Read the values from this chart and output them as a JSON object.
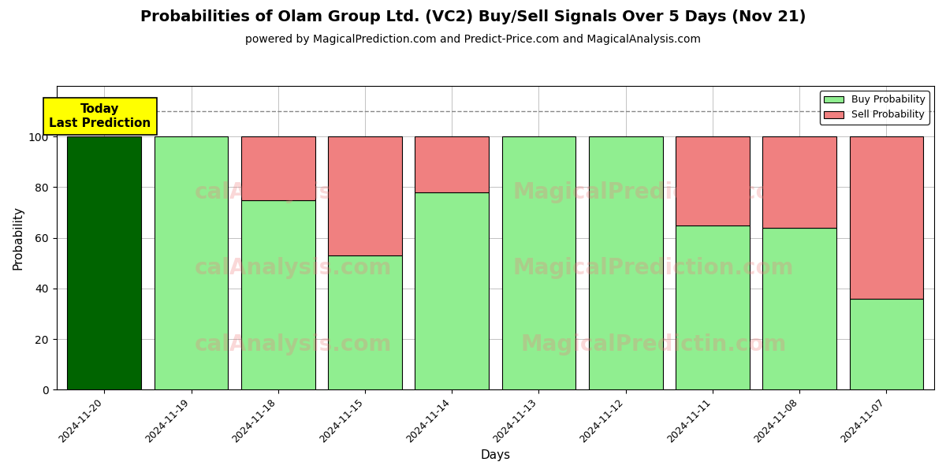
{
  "title": "Probabilities of Olam Group Ltd. (VC2) Buy/Sell Signals Over 5 Days (Nov 21)",
  "subtitle": "powered by MagicalPrediction.com and Predict-Price.com and MagicalAnalysis.com",
  "xlabel": "Days",
  "ylabel": "Probability",
  "dates": [
    "2024-11-20",
    "2024-11-19",
    "2024-11-18",
    "2024-11-15",
    "2024-11-14",
    "2024-11-13",
    "2024-11-12",
    "2024-11-11",
    "2024-11-08",
    "2024-11-07"
  ],
  "buy_values": [
    100,
    100,
    75,
    53,
    78,
    100,
    100,
    65,
    64,
    36
  ],
  "sell_values": [
    0,
    0,
    25,
    47,
    22,
    0,
    0,
    35,
    36,
    64
  ],
  "today_bar_color": "#006400",
  "buy_color": "#90EE90",
  "sell_color": "#F08080",
  "today_label_bg": "#FFFF00",
  "today_annotation": "Today\nLast Prediction",
  "dashed_line_y": 110,
  "ylim": [
    0,
    120
  ],
  "yticks": [
    0,
    20,
    40,
    60,
    80,
    100
  ],
  "bar_edge_color": "#000000",
  "bar_edge_width": 0.8,
  "grid_color": "#aaaaaa",
  "legend_buy": "Buy Probability",
  "legend_sell": "Sell Probability",
  "title_fontsize": 14,
  "subtitle_fontsize": 10,
  "label_fontsize": 11,
  "bar_width": 0.85
}
